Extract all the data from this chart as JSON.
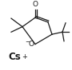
{
  "bg_color": "#ffffff",
  "line_color": "#1a1a1a",
  "line_width": 0.9,
  "text_color": "#1a1a1a",
  "figsize": [
    0.9,
    0.88
  ],
  "dpi": 100,
  "xlim": [
    0,
    90
  ],
  "ylim": [
    0,
    88
  ]
}
